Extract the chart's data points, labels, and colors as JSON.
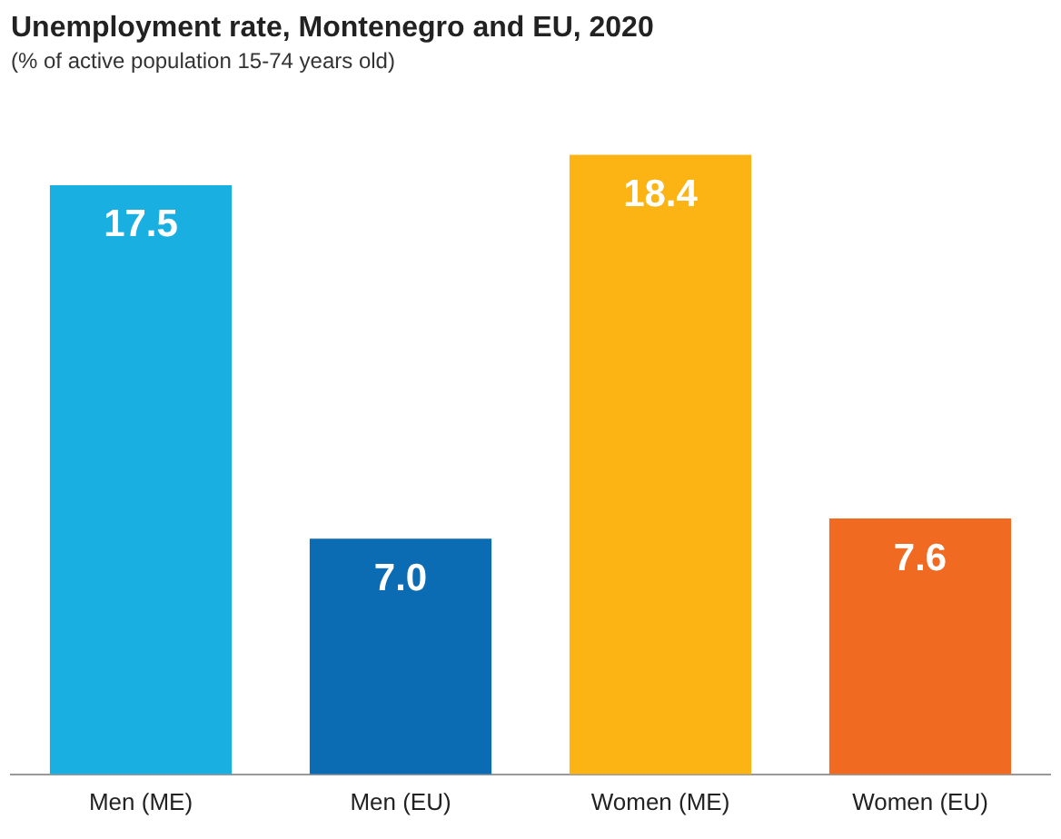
{
  "chart_data": {
    "type": "bar",
    "title": "Unemployment rate, Montenegro and EU, 2020",
    "subtitle": "(% of active population 15-74 years old)",
    "categories": [
      "Men (ME)",
      "Men (EU)",
      "Women (ME)",
      "Women (EU)"
    ],
    "values": [
      17.5,
      7.0,
      18.4,
      7.6
    ],
    "colors": [
      "#19afe1",
      "#0b6cb4",
      "#fcb415",
      "#f06b21"
    ],
    "value_labels": [
      "17.5",
      "7.0",
      "18.4",
      "7.6"
    ],
    "grid": false,
    "legend": false
  }
}
